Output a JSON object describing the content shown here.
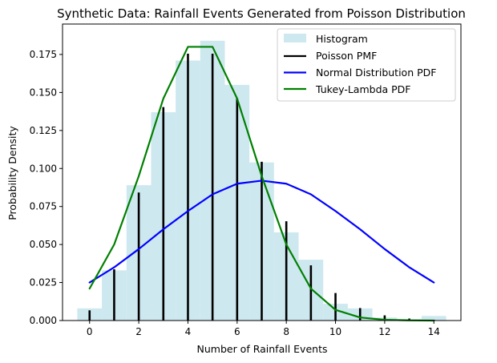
{
  "chart_data": {
    "type": "bar",
    "title": "Synthetic Data: Rainfall Events Generated from Poisson Distribution",
    "xlabel": "Number of Rainfall Events",
    "ylabel": "Probability Density",
    "xlim": [
      -1.1,
      15.1
    ],
    "ylim": [
      0,
      0.195
    ],
    "xticks": [
      0,
      2,
      4,
      6,
      8,
      10,
      12,
      14
    ],
    "yticks": [
      0.0,
      0.025,
      0.05,
      0.075,
      0.1,
      0.125,
      0.15,
      0.175
    ],
    "legend_position": "top-right",
    "histogram": {
      "name": "Histogram",
      "color": "#add8e6",
      "bin_edges": [
        -0.5,
        0.5,
        1.5,
        2.5,
        3.5,
        4.5,
        5.5,
        6.5,
        7.5,
        8.5,
        9.5,
        10.5,
        11.5,
        12.5,
        13.5,
        14.5
      ],
      "values": [
        0.008,
        0.033,
        0.089,
        0.137,
        0.171,
        0.184,
        0.155,
        0.104,
        0.058,
        0.04,
        0.011,
        0.008,
        0.002,
        0.001,
        0.003
      ]
    },
    "series": [
      {
        "name": "Poisson PMF",
        "kind": "stem",
        "color": "#000000",
        "x": [
          0,
          1,
          2,
          3,
          4,
          5,
          6,
          7,
          8,
          9,
          10,
          11,
          12,
          13,
          14
        ],
        "values": [
          0.0067,
          0.0337,
          0.0842,
          0.1404,
          0.1755,
          0.1755,
          0.1462,
          0.1044,
          0.0653,
          0.0363,
          0.0181,
          0.0082,
          0.0034,
          0.0013,
          0.0005
        ]
      },
      {
        "name": "Normal Distribution PDF",
        "kind": "line",
        "color": "#0000ff",
        "x": [
          0,
          1,
          2,
          3,
          4,
          5,
          6,
          7,
          8,
          9,
          10,
          11,
          12,
          13,
          14
        ],
        "values": [
          0.025,
          0.035,
          0.047,
          0.06,
          0.072,
          0.083,
          0.09,
          0.092,
          0.09,
          0.083,
          0.072,
          0.06,
          0.047,
          0.035,
          0.025
        ]
      },
      {
        "name": "Tukey-Lambda PDF",
        "kind": "line",
        "color": "#008000",
        "x": [
          0,
          1,
          2,
          3,
          4,
          5,
          6,
          7,
          8,
          9,
          10,
          11,
          12,
          13,
          14
        ],
        "values": [
          0.021,
          0.05,
          0.095,
          0.146,
          0.18,
          0.18,
          0.146,
          0.095,
          0.05,
          0.021,
          0.007,
          0.002,
          0.0005,
          0.0001,
          0.0
        ]
      }
    ]
  }
}
